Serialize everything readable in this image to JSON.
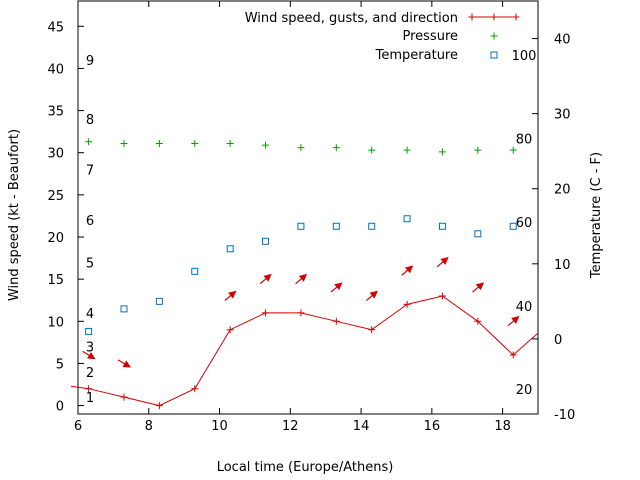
{
  "chart_data": {
    "type": "line",
    "x_label": "Local time (Europe/Athens)",
    "y_label": "Wind speed (kt - Beaufort)",
    "y2_label": "Temperature (C - F)",
    "xlim": [
      6,
      19
    ],
    "ylim": [
      -1,
      48
    ],
    "y2lim": [
      -10,
      45
    ],
    "x_ticks": [
      "6",
      "8",
      "10",
      "12",
      "14",
      "16",
      "18"
    ],
    "x_tick_values": [
      6,
      8,
      10,
      12,
      14,
      16,
      18
    ],
    "y_ticks": [
      "0",
      "5",
      "10",
      "15",
      "20",
      "25",
      "30",
      "35",
      "40",
      "45"
    ],
    "y_tick_values": [
      0,
      5,
      10,
      15,
      20,
      25,
      30,
      35,
      40,
      45
    ],
    "y2_ticks": [
      "-10",
      "0",
      "10",
      "20",
      "30",
      "40"
    ],
    "y2_tick_values": [
      -10,
      0,
      10,
      20,
      30,
      40
    ],
    "beaufort_labels": [
      {
        "text": "1",
        "y": 1
      },
      {
        "text": "2",
        "y": 4
      },
      {
        "text": "3",
        "y": 7
      },
      {
        "text": "4",
        "y": 11
      },
      {
        "text": "5",
        "y": 17
      },
      {
        "text": "6",
        "y": 22
      },
      {
        "text": "7",
        "y": 28
      },
      {
        "text": "8",
        "y": 34
      },
      {
        "text": "9",
        "y": 41
      }
    ],
    "fahrenheit_labels": [
      {
        "text": "20",
        "y2": -6.7
      },
      {
        "text": "40",
        "y2": 4.4
      },
      {
        "text": "60",
        "y2": 15.6
      },
      {
        "text": "80",
        "y2": 26.7
      },
      {
        "text": "100",
        "y2": 37.8
      }
    ],
    "legend_position": "top-right",
    "series": [
      {
        "name": "Wind speed, gusts, and direction",
        "axis": "y",
        "style": "line+plus",
        "color": "#d40000",
        "x": [
          5.8,
          6.3,
          7.3,
          8.3,
          9.3,
          10.3,
          11.3,
          12.3,
          13.3,
          14.3,
          15.3,
          16.3,
          17.3,
          18.3,
          19.0
        ],
        "values": [
          2.3,
          2,
          1,
          0,
          2,
          9,
          11,
          11,
          10,
          9,
          12,
          13,
          10,
          6,
          8.6
        ]
      },
      {
        "name": "Pressure",
        "axis": "y",
        "style": "plus",
        "color": "#00a000",
        "x": [
          6.3,
          7.3,
          8.3,
          9.3,
          10.3,
          11.3,
          12.3,
          13.3,
          14.3,
          15.3,
          16.3,
          17.3,
          18.3
        ],
        "values": [
          31.3,
          31.1,
          31.1,
          31.1,
          31.1,
          30.9,
          30.6,
          30.6,
          30.3,
          30.3,
          30.1,
          30.3,
          30.3
        ]
      },
      {
        "name": "Temperature",
        "axis": "y2",
        "style": "box",
        "color": "#0070c0",
        "x": [
          6.3,
          7.3,
          8.3,
          9.3,
          10.3,
          11.3,
          12.3,
          13.3,
          14.3,
          15.3,
          16.3,
          17.3,
          18.3
        ],
        "values": [
          1,
          4,
          5,
          9,
          12,
          13,
          15,
          15,
          15,
          16,
          15,
          14,
          15
        ]
      }
    ],
    "wind_direction_arrows": [
      {
        "x": 6.3,
        "y": 6.0,
        "dir": "down-right"
      },
      {
        "x": 7.3,
        "y": 5.0,
        "dir": "down-right"
      },
      {
        "x": 10.3,
        "y": 13.0,
        "dir": "up-right"
      },
      {
        "x": 11.3,
        "y": 15.0,
        "dir": "up-right"
      },
      {
        "x": 12.3,
        "y": 15.0,
        "dir": "up-right"
      },
      {
        "x": 13.3,
        "y": 14.0,
        "dir": "up-right"
      },
      {
        "x": 14.3,
        "y": 13.0,
        "dir": "up-right"
      },
      {
        "x": 15.3,
        "y": 16.0,
        "dir": "up-right"
      },
      {
        "x": 16.3,
        "y": 17.0,
        "dir": "up-right"
      },
      {
        "x": 17.3,
        "y": 14.0,
        "dir": "up-right"
      },
      {
        "x": 18.3,
        "y": 10.0,
        "dir": "up-right"
      }
    ]
  }
}
